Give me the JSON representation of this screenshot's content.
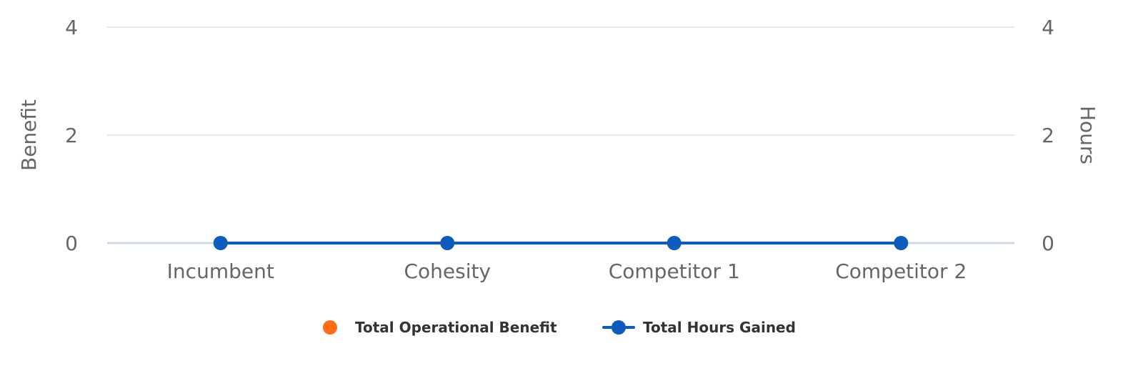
{
  "chart_data": {
    "type": "line",
    "categories": [
      "Incumbent",
      "Cohesity",
      "Competitor 1",
      "Competitor 2"
    ],
    "series": [
      {
        "name": "Total Operational Benefit",
        "type": "bar",
        "axis": "left",
        "color": "#ff6d12",
        "values": [
          0,
          0,
          0,
          0
        ]
      },
      {
        "name": "Total Hours Gained",
        "type": "line",
        "axis": "right",
        "color": "#0b5cbd",
        "values": [
          0,
          0,
          0,
          0
        ]
      }
    ],
    "y_left": {
      "label": "Benefit",
      "ylim": [
        0,
        4
      ],
      "ticks": [
        "0",
        "2",
        "4"
      ]
    },
    "y_right": {
      "label": "Hours",
      "ylim": [
        0,
        4
      ],
      "ticks": [
        "0",
        "2",
        "4"
      ]
    },
    "grid": true,
    "legend": "bottom-center",
    "colors": {
      "grid": "#e6e6ee",
      "axis": "#ccd6eb",
      "text": "#666666",
      "legend_text": "#333333"
    }
  }
}
